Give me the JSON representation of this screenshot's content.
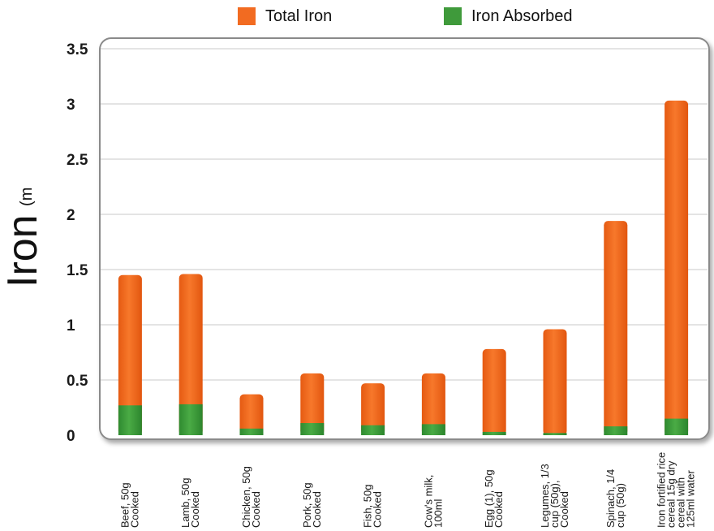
{
  "chart_data": {
    "type": "bar",
    "stacked": true,
    "ylabel_main": "Iron",
    "ylabel_unit": "(mg)",
    "ylim": [
      0,
      3.5
    ],
    "yticks": [
      "0",
      "0.5",
      "1",
      "1.5",
      "2",
      "2.5",
      "3",
      "3.5"
    ],
    "grid": true,
    "legend_position": "top",
    "categories": [
      [
        "Beef, 50g",
        "Cooked"
      ],
      [
        "Lamb, 50g",
        "Cooked"
      ],
      [
        "Chicken, 50g",
        "Cooked"
      ],
      [
        "Pork, 50g",
        "Cooked"
      ],
      [
        "Fish, 50g",
        "Cooked"
      ],
      [
        "Cow's milk,",
        "100ml"
      ],
      [
        "Egg (1), 50g",
        "Cooked"
      ],
      [
        "Legumes, 1/3",
        "cup (50g),",
        "Cooked"
      ],
      [
        "Spinach, 1/4",
        "cup (50g)"
      ],
      [
        "Iron fortified rice",
        "cereal 15g dry",
        "cereal with",
        "125ml water"
      ]
    ],
    "series": [
      {
        "name": "Total Iron",
        "color": "#f26b21",
        "values": [
          1.45,
          1.46,
          0.37,
          0.56,
          0.47,
          0.56,
          0.78,
          0.96,
          1.94,
          3.03
        ]
      },
      {
        "name": "Iron Absorbed",
        "color": "#3f9a3b",
        "values": [
          0.27,
          0.28,
          0.06,
          0.11,
          0.09,
          0.1,
          0.03,
          0.02,
          0.08,
          0.15
        ]
      }
    ]
  }
}
